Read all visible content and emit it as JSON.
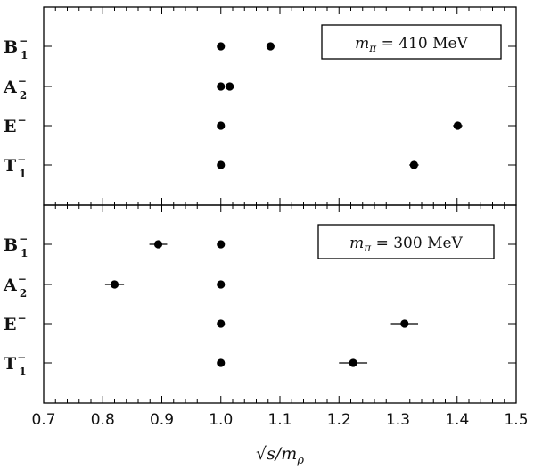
{
  "chart_data": {
    "type": "scatter",
    "xlabel": "√s/m_ρ",
    "xlim": [
      0.7,
      1.5
    ],
    "xticks": [
      "0.7",
      "0.8",
      "0.9",
      "1.0",
      "1.1",
      "1.2",
      "1.3",
      "1.4",
      "1.5"
    ],
    "panels": [
      {
        "legend": "m_π = 410 MeV",
        "legend_position": "top-right",
        "categories": [
          {
            "base": "B",
            "sup": "−",
            "sub": "1"
          },
          {
            "base": "A",
            "sup": "−",
            "sub": "2"
          },
          {
            "base": "E",
            "sup": "−",
            "sub": ""
          },
          {
            "base": "T",
            "sup": "−",
            "sub": "1"
          }
        ],
        "points": [
          {
            "category": 0,
            "x": 1.0,
            "err": 0.0
          },
          {
            "category": 0,
            "x": 1.084,
            "err": 0.006
          },
          {
            "category": 1,
            "x": 1.0,
            "err": 0.0
          },
          {
            "category": 1,
            "x": 1.015,
            "err": 0.004
          },
          {
            "category": 2,
            "x": 1.0,
            "err": 0.0
          },
          {
            "category": 2,
            "x": 1.401,
            "err": 0.008
          },
          {
            "category": 3,
            "x": 1.0,
            "err": 0.006
          },
          {
            "category": 3,
            "x": 1.327,
            "err": 0.008
          }
        ]
      },
      {
        "legend": "m_π = 300 MeV",
        "legend_position": "top-right",
        "categories": [
          {
            "base": "B",
            "sup": "−",
            "sub": "1"
          },
          {
            "base": "A",
            "sup": "−",
            "sub": "2"
          },
          {
            "base": "E",
            "sup": "−",
            "sub": ""
          },
          {
            "base": "T",
            "sup": "−",
            "sub": "1"
          }
        ],
        "points": [
          {
            "category": 0,
            "x": 1.0,
            "err": 0.0
          },
          {
            "category": 0,
            "x": 0.894,
            "err": 0.015
          },
          {
            "category": 1,
            "x": 1.0,
            "err": 0.0
          },
          {
            "category": 1,
            "x": 0.82,
            "err": 0.016
          },
          {
            "category": 2,
            "x": 1.0,
            "err": 0.0
          },
          {
            "category": 2,
            "x": 1.311,
            "err": 0.023
          },
          {
            "category": 3,
            "x": 1.0,
            "err": 0.0
          },
          {
            "category": 3,
            "x": 1.224,
            "err": 0.024
          }
        ]
      }
    ]
  }
}
